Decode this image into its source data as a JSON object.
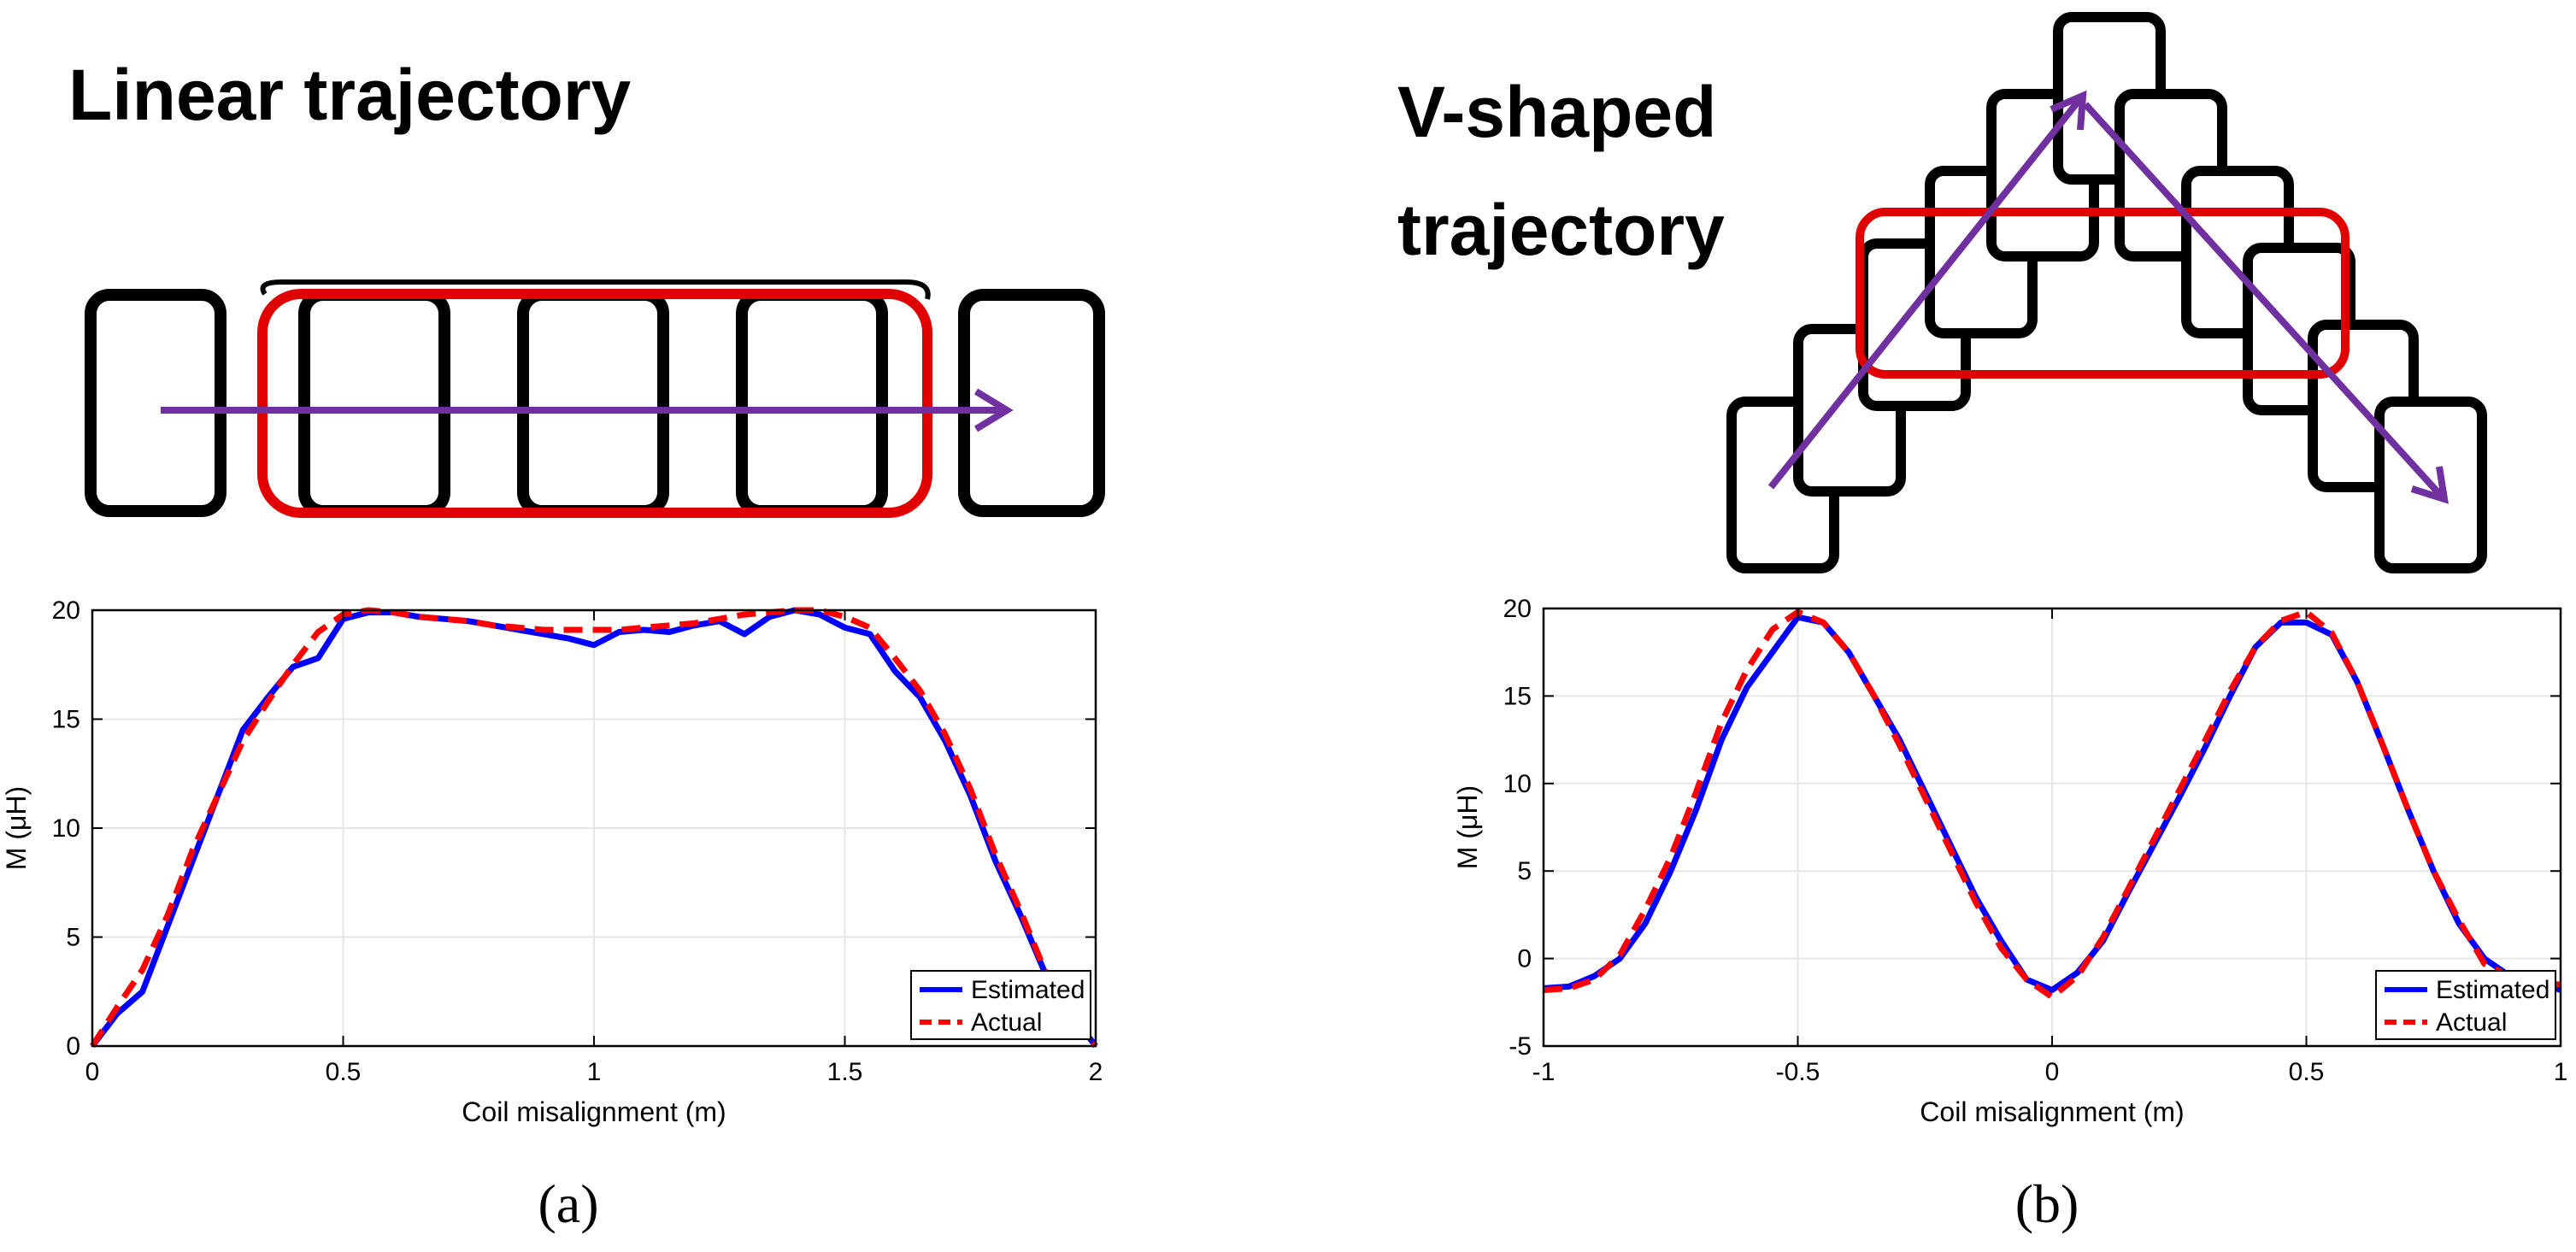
{
  "diagrams": {
    "a_title": "Linear trajectory",
    "b_title_line1": "V-shaped",
    "b_title_line2": "trajectory",
    "colors": {
      "coil": "#000000",
      "receiver": "#e00000",
      "arrow": "#7030a0"
    }
  },
  "chart_data": [
    {
      "type": "line",
      "panel_label": "(a)",
      "xlabel": "Coil misalignment (m)",
      "ylabel": "M (μH)",
      "xlim": [
        0,
        2
      ],
      "ylim": [
        0,
        20
      ],
      "xticks": [
        0,
        0.5,
        1,
        1.5,
        2
      ],
      "xtick_labels": [
        "0",
        "0.5",
        "1",
        "1.5",
        "2"
      ],
      "yticks": [
        0,
        5,
        10,
        15,
        20
      ],
      "ytick_labels": [
        "0",
        "5",
        "10",
        "15",
        "20"
      ],
      "grid": true,
      "legend_position": "bottom-right",
      "series": [
        {
          "name": "Estimated",
          "color": "#0000ff",
          "style": "solid",
          "x": [
            0,
            0.05,
            0.1,
            0.15,
            0.2,
            0.25,
            0.3,
            0.35,
            0.4,
            0.45,
            0.5,
            0.55,
            0.6,
            0.65,
            0.7,
            0.75,
            0.8,
            0.85,
            0.9,
            0.95,
            1.0,
            1.05,
            1.1,
            1.15,
            1.2,
            1.25,
            1.3,
            1.35,
            1.4,
            1.45,
            1.5,
            1.55,
            1.6,
            1.65,
            1.7,
            1.75,
            1.8,
            1.85,
            1.9,
            1.95,
            2.0
          ],
          "y": [
            0,
            1.5,
            2.5,
            5.5,
            8.5,
            11.5,
            14.5,
            16,
            17.4,
            17.8,
            19.6,
            19.9,
            19.9,
            19.7,
            19.6,
            19.5,
            19.3,
            19.1,
            18.9,
            18.7,
            18.4,
            19.0,
            19.1,
            19.0,
            19.3,
            19.5,
            18.9,
            19.7,
            20.0,
            19.8,
            19.2,
            18.9,
            17.2,
            16.0,
            14.0,
            11.5,
            8.5,
            6.0,
            3.3,
            1.5,
            0
          ]
        },
        {
          "name": "Actual",
          "color": "#ff0000",
          "style": "dashed",
          "x": [
            0,
            0.05,
            0.1,
            0.15,
            0.2,
            0.25,
            0.3,
            0.35,
            0.4,
            0.45,
            0.5,
            0.55,
            0.6,
            0.65,
            0.7,
            0.75,
            0.8,
            0.85,
            0.9,
            0.95,
            1.0,
            1.05,
            1.1,
            1.15,
            1.2,
            1.25,
            1.3,
            1.35,
            1.4,
            1.45,
            1.5,
            1.55,
            1.6,
            1.65,
            1.7,
            1.75,
            1.8,
            1.85,
            1.9,
            1.95,
            2.0
          ],
          "y": [
            0,
            1.8,
            3.5,
            6.0,
            9.0,
            11.5,
            14.0,
            15.8,
            17.5,
            19.0,
            19.8,
            20.0,
            19.9,
            19.7,
            19.6,
            19.5,
            19.3,
            19.2,
            19.1,
            19.1,
            19.1,
            19.1,
            19.2,
            19.3,
            19.4,
            19.6,
            19.8,
            19.9,
            20.0,
            20.0,
            19.7,
            19.2,
            17.8,
            16.3,
            14.3,
            11.8,
            8.8,
            6.2,
            3.4,
            1.5,
            0
          ]
        }
      ]
    },
    {
      "type": "line",
      "panel_label": "(b)",
      "xlabel": "Coil misalignment (m)",
      "ylabel": "M (μH)",
      "xlim": [
        -1,
        1
      ],
      "ylim": [
        -5,
        20
      ],
      "xticks": [
        -1,
        -0.5,
        0,
        0.5,
        1
      ],
      "xtick_labels": [
        "-1",
        "-0.5",
        "0",
        "0.5",
        "1"
      ],
      "yticks": [
        -5,
        0,
        5,
        10,
        15,
        20
      ],
      "ytick_labels": [
        "-5",
        "0",
        "5",
        "10",
        "15",
        "20"
      ],
      "grid": true,
      "legend_position": "bottom-right",
      "series": [
        {
          "name": "Estimated",
          "color": "#0000ff",
          "style": "solid",
          "x": [
            -1.0,
            -0.95,
            -0.9,
            -0.85,
            -0.8,
            -0.75,
            -0.7,
            -0.65,
            -0.6,
            -0.55,
            -0.5,
            -0.45,
            -0.4,
            -0.35,
            -0.3,
            -0.25,
            -0.2,
            -0.15,
            -0.1,
            -0.05,
            0.0,
            0.05,
            0.1,
            0.15,
            0.2,
            0.25,
            0.3,
            0.35,
            0.4,
            0.45,
            0.5,
            0.55,
            0.6,
            0.65,
            0.7,
            0.75,
            0.8,
            0.85,
            0.9,
            0.95,
            1.0
          ],
          "y": [
            -1.7,
            -1.6,
            -1.0,
            0.0,
            2.0,
            5.0,
            8.5,
            12.5,
            15.5,
            17.5,
            19.5,
            19.2,
            17.5,
            15.0,
            12.5,
            9.5,
            6.5,
            3.5,
            1.0,
            -1.2,
            -1.8,
            -0.8,
            1.0,
            3.8,
            6.5,
            9.2,
            12.0,
            15.0,
            17.8,
            19.2,
            19.2,
            18.5,
            15.8,
            12.2,
            8.5,
            5.0,
            2.0,
            0.0,
            -1.0,
            -1.3,
            -1.8
          ]
        },
        {
          "name": "Actual",
          "color": "#ff0000",
          "style": "dashed",
          "x": [
            -1.0,
            -0.95,
            -0.9,
            -0.85,
            -0.8,
            -0.75,
            -0.7,
            -0.65,
            -0.6,
            -0.55,
            -0.5,
            -0.45,
            -0.4,
            -0.35,
            -0.3,
            -0.25,
            -0.2,
            -0.15,
            -0.1,
            -0.05,
            0.0,
            0.05,
            0.1,
            0.15,
            0.2,
            0.25,
            0.3,
            0.35,
            0.4,
            0.45,
            0.5,
            0.55,
            0.6,
            0.65,
            0.7,
            0.75,
            0.8,
            0.85,
            0.9,
            0.95,
            1.0
          ],
          "y": [
            -1.8,
            -1.7,
            -1.2,
            0.2,
            2.8,
            5.8,
            9.5,
            13.5,
            16.5,
            18.8,
            19.8,
            19.2,
            17.5,
            15.0,
            12.2,
            9.2,
            6.2,
            3.2,
            0.6,
            -1.2,
            -2.2,
            -1.0,
            1.2,
            4.0,
            6.8,
            9.6,
            12.4,
            15.3,
            17.8,
            19.3,
            19.8,
            18.6,
            15.8,
            12.2,
            8.5,
            5.0,
            2.2,
            -0.3,
            -1.0,
            -1.3,
            -1.5
          ]
        }
      ]
    }
  ]
}
